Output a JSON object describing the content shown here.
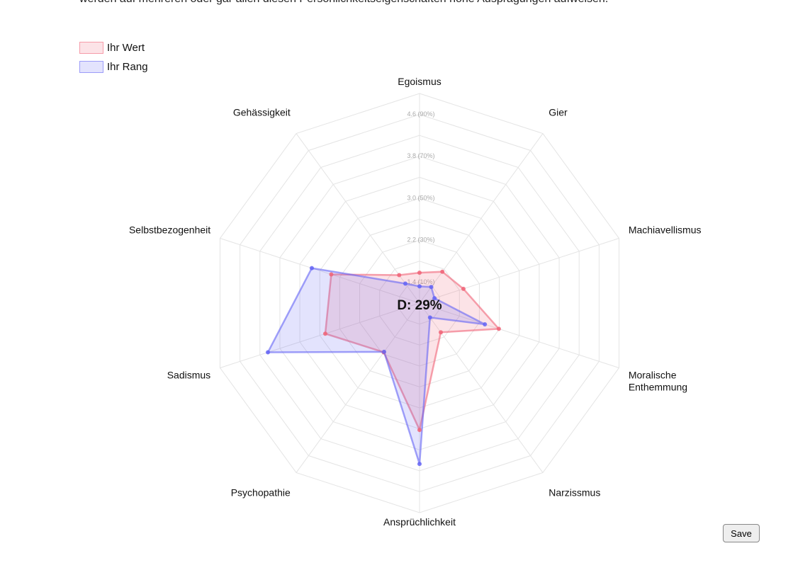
{
  "intro_text": "werden auf mehreren oder gar allen diesen Persönlichkeitseigenschaften hohe Ausprägungen aufweisen.",
  "chart_data": {
    "type": "radar",
    "categories": [
      "Egoismus",
      "Gier",
      "Machiavellismus",
      "Moralische Enthemmung",
      "Narzissmus",
      "Ansprüchlichkeit",
      "Psychopathie",
      "Sadismus",
      "Selbstbezogenheit",
      "Gehässigkeit"
    ],
    "series": [
      {
        "name": "Ihr Wert",
        "color": "#f06478",
        "values": [
          1.58,
          1.74,
          1.88,
          2.59,
          1.69,
          3.42,
          2.16,
          2.89,
          2.77,
          1.66
        ]
      },
      {
        "name": "Ihr Rang",
        "color": "#6464f5",
        "values": [
          1.32,
          1.38,
          1.3,
          2.31,
          1.34,
          4.07,
          2.15,
          4.04,
          3.16,
          1.46
        ]
      }
    ],
    "ylim": [
      1.0,
      5.0
    ],
    "grid_rings": [
      1.4,
      1.8,
      2.2,
      2.6,
      3.0,
      3.4,
      3.8,
      4.2,
      4.6,
      5.0
    ],
    "yticks": [
      {
        "value": 1.4,
        "label": "1.4  (10%)"
      },
      {
        "value": 2.2,
        "label": "2.2  (30%)"
      },
      {
        "value": 3.0,
        "label": "3.0  (50%)"
      },
      {
        "value": 3.8,
        "label": "3.8  (70%)"
      },
      {
        "value": 4.6,
        "label": "4.6  (90%)"
      }
    ],
    "center_label": "D: 29%",
    "legend": "top-left"
  },
  "button": "Save"
}
